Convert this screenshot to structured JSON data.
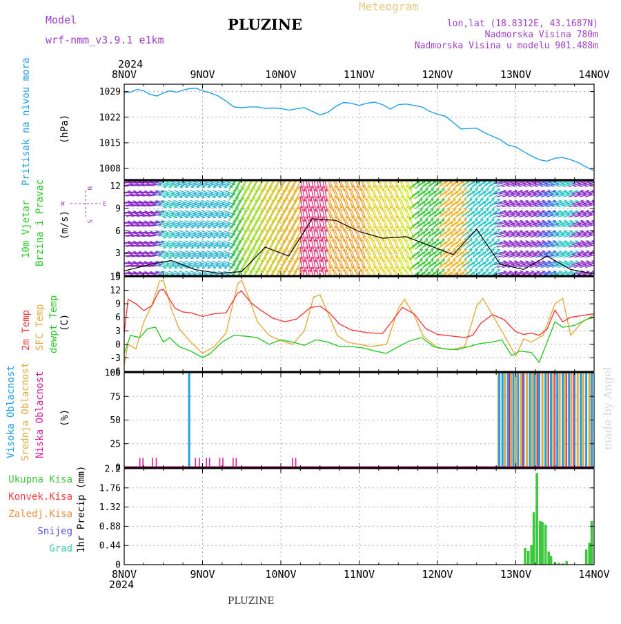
{
  "header": {
    "model_label": "Model",
    "model_name": "wrf-nmm_v3.9.1 e1km",
    "title": "PLUZINE",
    "meteogram": "Meteogram",
    "lonlat": "lon,lat (18.8312E, 43.1687N)",
    "elevation": "Nadmorska Visina 780m",
    "model_elevation": "Nadmorska Visina u modelu 901.488m",
    "year_top": "2024",
    "year_bottom": "2024",
    "footer": "PLUZINE",
    "credit": "made by Angel"
  },
  "colors": {
    "pressure": "#1fa0e6",
    "temp2m": "#f03c3c",
    "sfc": "#e6aa3c",
    "dewpt": "#28c828",
    "high_cloud": "#1fa0e6",
    "mid_cloud": "#e6aa3c",
    "low_cloud": "#dc1e96",
    "rain": "#3cc83c",
    "purple": "#a040c8"
  },
  "labels": {
    "pressure": [
      "Pritisak na nivou mora",
      "(hPa)"
    ],
    "wind": [
      "10m Vjetar",
      "Brzina i Pravac",
      "(m/s)"
    ],
    "compass": {
      "n": "N",
      "s": "S",
      "e": "E",
      "w": "W"
    },
    "temp": [
      "2m Temp",
      "SFC Temp",
      "dewpt Temp",
      "(C)"
    ],
    "cloud": [
      "Visoka Oblacnost",
      "Srednja Oblacnost",
      "Niska Oblacnost",
      "(%)"
    ],
    "precip_axis": "1hr Precip (mm)",
    "precip_legend": [
      "Ukupna Kisa",
      "Konvek.Kisa",
      "Zaledj.Kisa",
      "Snijeg",
      "Grad"
    ]
  },
  "chart_data": [
    {
      "type": "line",
      "name": "pressure",
      "x_categories": [
        "8NOV",
        "9NOV",
        "10NOV",
        "11NOV",
        "12NOV",
        "13NOV",
        "14NOV"
      ],
      "ylim": [
        1005,
        1031
      ],
      "yticks": [
        1008,
        1015,
        1022,
        1029
      ],
      "x": [
        0,
        0.08,
        0.17,
        0.25,
        0.33,
        0.42,
        0.5,
        0.58,
        0.67,
        0.75,
        0.83,
        0.92,
        1.0,
        1.1,
        1.2,
        1.3,
        1.4,
        1.5,
        1.6,
        1.7,
        1.8,
        1.9,
        2.0,
        2.1,
        2.2,
        2.3,
        2.4,
        2.5,
        2.6,
        2.7,
        2.8,
        2.9,
        3.0,
        3.1,
        3.2,
        3.3,
        3.4,
        3.5,
        3.6,
        3.7,
        3.8,
        3.9,
        4.0,
        4.1,
        4.2,
        4.3,
        4.4,
        4.5,
        4.6,
        4.7,
        4.8,
        4.9,
        5.0,
        5.1,
        5.2,
        5.3,
        5.4,
        5.5,
        5.6,
        5.7,
        5.8,
        5.9,
        6.0
      ],
      "y": [
        1028.6,
        1028.8,
        1029.6,
        1029.2,
        1028.2,
        1027.8,
        1028.6,
        1029.2,
        1028.8,
        1029.4,
        1029.8,
        1029.9,
        1029.2,
        1028.6,
        1027.8,
        1026.4,
        1024.8,
        1024.6,
        1024.8,
        1024.8,
        1024.4,
        1024.5,
        1024.4,
        1023.9,
        1024.3,
        1024.6,
        1023.6,
        1022.6,
        1023.3,
        1024.9,
        1026.0,
        1025.8,
        1025.2,
        1025.8,
        1026.1,
        1025.4,
        1024.2,
        1025.4,
        1025.6,
        1025.2,
        1024.8,
        1023.6,
        1022.8,
        1022.3,
        1020.6,
        1018.8,
        1018.9,
        1019.0,
        1017.8,
        1016.8,
        1015.9,
        1014.4,
        1013.9,
        1012.6,
        1011.4,
        1010.4,
        1010.0,
        1010.8,
        1011.0,
        1010.4,
        1009.6,
        1008.4,
        1007.4
      ]
    },
    {
      "type": "heatmap",
      "name": "wind",
      "ylim": [
        0,
        12.7
      ],
      "yticks": [
        0,
        3,
        6,
        9,
        12
      ],
      "speed_x": [
        0,
        0.3,
        0.6,
        0.9,
        1.2,
        1.5,
        1.8,
        2.1,
        2.4,
        2.7,
        3.0,
        3.3,
        3.6,
        3.9,
        4.2,
        4.5,
        4.8,
        5.1,
        5.4,
        5.7,
        6.0
      ],
      "speed": [
        0.6,
        1.4,
        2.0,
        0.8,
        0.3,
        0.5,
        3.8,
        2.6,
        7.6,
        7.4,
        5.9,
        5.0,
        5.2,
        4.0,
        2.8,
        6.2,
        1.5,
        0.8,
        2.6,
        0.8,
        0.2
      ]
    },
    {
      "type": "line",
      "name": "temperature",
      "ylim": [
        -6,
        15
      ],
      "yticks": [
        -6,
        -3,
        0,
        3,
        6,
        9,
        12,
        15
      ],
      "series": [
        {
          "name": "2m Temp",
          "x": [
            0,
            0.05,
            0.15,
            0.25,
            0.35,
            0.45,
            0.5,
            0.58,
            0.65,
            0.75,
            0.85,
            1.0,
            1.15,
            1.3,
            1.45,
            1.5,
            1.62,
            1.75,
            1.9,
            2.05,
            2.2,
            2.38,
            2.5,
            2.62,
            2.75,
            2.9,
            3.1,
            3.3,
            3.45,
            3.55,
            3.7,
            3.85,
            4.0,
            4.2,
            4.35,
            4.45,
            4.55,
            4.7,
            4.85,
            5.0,
            5.1,
            5.2,
            5.3,
            5.4,
            5.5,
            5.6,
            5.7,
            5.85,
            6.0
          ],
          "y": [
            2.5,
            10.0,
            9.0,
            7.5,
            8.5,
            12.0,
            12.2,
            10.0,
            8.0,
            7.2,
            7.0,
            6.2,
            6.8,
            7.0,
            11.4,
            11.8,
            9.2,
            7.5,
            5.8,
            5.0,
            5.6,
            8.2,
            8.5,
            7.0,
            4.5,
            3.2,
            2.6,
            2.4,
            5.8,
            8.2,
            6.8,
            3.5,
            2.2,
            1.8,
            1.5,
            2.0,
            4.6,
            6.6,
            5.5,
            2.8,
            2.2,
            2.5,
            2.0,
            3.4,
            7.6,
            5.0,
            6.0,
            6.4,
            6.8
          ]
        },
        {
          "name": "SFC Temp",
          "x": [
            0,
            0.05,
            0.15,
            0.25,
            0.35,
            0.45,
            0.5,
            0.6,
            0.7,
            0.85,
            1.0,
            1.15,
            1.3,
            1.45,
            1.5,
            1.6,
            1.7,
            1.85,
            2.0,
            2.15,
            2.3,
            2.42,
            2.5,
            2.6,
            2.72,
            2.85,
            3.0,
            3.15,
            3.35,
            3.5,
            3.58,
            3.7,
            3.82,
            4.0,
            4.18,
            4.35,
            4.5,
            4.58,
            4.72,
            4.82,
            5.0,
            5.1,
            5.2,
            5.35,
            5.5,
            5.6,
            5.7,
            5.85,
            6.0
          ],
          "y": [
            -4.5,
            0,
            -1.0,
            5.0,
            8.5,
            14.0,
            14.2,
            8.0,
            3.5,
            0.5,
            -2.0,
            -0.5,
            2.5,
            13.5,
            14.2,
            10.0,
            5.0,
            2.0,
            0.8,
            0.0,
            3.0,
            10.5,
            11.0,
            7.0,
            2.0,
            0.5,
            0.0,
            -0.5,
            0.0,
            8.0,
            10.0,
            6.5,
            1.8,
            -0.8,
            -1.2,
            -0.5,
            8.5,
            10.2,
            6.0,
            3.0,
            -2.6,
            1.2,
            0.5,
            2.0,
            9.0,
            10.2,
            2.0,
            5.0,
            6.5
          ]
        },
        {
          "name": "dewpt Temp",
          "x": [
            0,
            0.08,
            0.2,
            0.3,
            0.4,
            0.5,
            0.58,
            0.7,
            0.85,
            1.0,
            1.1,
            1.25,
            1.4,
            1.55,
            1.7,
            1.85,
            2.0,
            2.15,
            2.3,
            2.45,
            2.6,
            2.75,
            2.9,
            3.05,
            3.2,
            3.35,
            3.5,
            3.65,
            3.8,
            3.95,
            4.1,
            4.25,
            4.4,
            4.55,
            4.7,
            4.82,
            4.95,
            5.05,
            5.2,
            5.3,
            5.4,
            5.5,
            5.6,
            5.75,
            5.9,
            6.0
          ],
          "y": [
            -2.0,
            2.0,
            1.5,
            3.5,
            3.8,
            0.5,
            1.5,
            -0.5,
            -1.5,
            -3.0,
            -2.0,
            0.5,
            2.0,
            1.8,
            1.5,
            0.0,
            1.0,
            0.5,
            -0.2,
            1.0,
            0.5,
            -0.5,
            -0.5,
            -0.8,
            -1.5,
            -2.0,
            -0.5,
            0.8,
            1.5,
            -0.5,
            -1.0,
            -1.2,
            -0.5,
            0.2,
            0.5,
            1.0,
            -2.5,
            -1.5,
            -1.8,
            -4.0,
            0.5,
            5.0,
            3.8,
            4.2,
            5.5,
            6.0
          ]
        }
      ]
    },
    {
      "type": "bar",
      "name": "cloud",
      "ylim": [
        0,
        100
      ],
      "yticks": [
        0,
        25,
        50,
        75,
        100
      ],
      "series": [
        {
          "name": "Visoka Oblacnost",
          "x": [
            0.83,
            4.79,
            4.83,
            4.9,
            4.97,
            5.03,
            5.1,
            5.18,
            5.24,
            5.3,
            5.38,
            5.45,
            5.53,
            5.6,
            5.68,
            5.75,
            5.83,
            5.9,
            5.97
          ],
          "y": [
            100,
            100,
            100,
            100,
            100,
            100,
            100,
            100,
            100,
            100,
            100,
            100,
            100,
            100,
            100,
            100,
            100,
            100,
            100
          ]
        },
        {
          "name": "Srednja Oblacnost",
          "x": [
            4.78,
            4.86,
            4.94,
            5.0,
            5.07,
            5.14,
            5.21,
            5.27,
            5.34,
            5.41,
            5.48,
            5.56,
            5.63,
            5.71,
            5.79,
            5.86,
            5.94
          ],
          "y": [
            100,
            100,
            100,
            100,
            100,
            100,
            100,
            100,
            100,
            100,
            100,
            100,
            100,
            100,
            100,
            100,
            100
          ]
        },
        {
          "name": "Niska Oblacnost",
          "x": [
            0.2,
            0.24,
            0.36,
            0.41,
            0.91,
            0.96,
            1.05,
            1.09,
            1.22,
            1.26,
            1.39,
            1.43,
            2.15,
            2.19,
            4.92,
            5.09,
            5.28,
            5.42,
            5.5,
            5.65,
            5.74
          ],
          "y": [
            10,
            10,
            10,
            10,
            10,
            10,
            10,
            10,
            10,
            10,
            10,
            10,
            10,
            10,
            100,
            100,
            100,
            100,
            100,
            100,
            100
          ]
        }
      ]
    },
    {
      "type": "bar",
      "name": "precip",
      "ylim": [
        0,
        2.2
      ],
      "yticks": [
        0,
        0.44,
        0.88,
        1.32,
        1.76,
        2.2
      ],
      "x": [
        5.12,
        5.16,
        5.2,
        5.23,
        5.27,
        5.31,
        5.34,
        5.38,
        5.42,
        5.45,
        5.5,
        5.55,
        5.6,
        5.65,
        5.9,
        5.94,
        5.97
      ],
      "y": [
        0.38,
        0.32,
        0.45,
        1.2,
        2.1,
        1.0,
        0.98,
        0.92,
        0.3,
        0.2,
        0.06,
        0.04,
        0.03,
        0.08,
        0.35,
        0.5,
        1.0
      ]
    }
  ]
}
